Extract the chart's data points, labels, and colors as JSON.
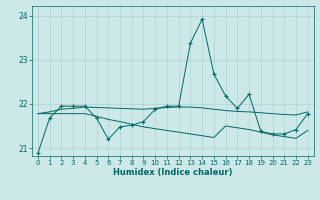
{
  "xlabel": "Humidex (Indice chaleur)",
  "background_color": "#cce8e8",
  "line_color": "#006666",
  "grid_color": "#aacccc",
  "xlim": [
    -0.5,
    23.5
  ],
  "ylim": [
    20.82,
    24.22
  ],
  "yticks": [
    21,
    22,
    23,
    24
  ],
  "xticks": [
    0,
    1,
    2,
    3,
    4,
    5,
    6,
    7,
    8,
    9,
    10,
    11,
    12,
    13,
    14,
    15,
    16,
    17,
    18,
    19,
    20,
    21,
    22,
    23
  ],
  "series0": [
    20.88,
    21.68,
    21.95,
    21.95,
    21.95,
    21.68,
    21.2,
    21.48,
    21.52,
    21.6,
    21.88,
    21.95,
    21.95,
    23.38,
    23.92,
    22.68,
    22.18,
    21.9,
    22.22,
    21.38,
    21.32,
    21.32,
    21.42,
    21.78
  ],
  "series1": [
    21.78,
    21.82,
    21.88,
    21.9,
    21.93,
    21.92,
    21.91,
    21.9,
    21.89,
    21.88,
    21.9,
    21.92,
    21.93,
    21.93,
    21.91,
    21.88,
    21.85,
    21.83,
    21.82,
    21.8,
    21.78,
    21.76,
    21.75,
    21.82
  ],
  "series2": [
    21.78,
    21.78,
    21.78,
    21.78,
    21.78,
    21.72,
    21.65,
    21.6,
    21.54,
    21.48,
    21.44,
    21.4,
    21.36,
    21.32,
    21.28,
    21.24,
    21.5,
    21.46,
    21.42,
    21.36,
    21.3,
    21.26,
    21.22,
    21.4
  ]
}
